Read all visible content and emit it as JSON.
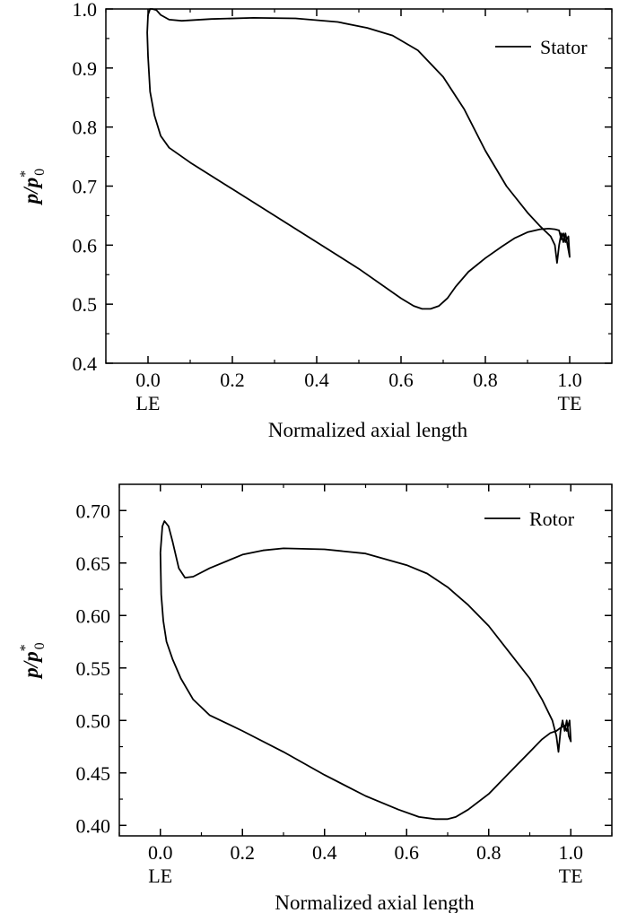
{
  "chart_data": [
    {
      "type": "line",
      "xlabel": "Normalized axial length",
      "ylabel": {
        "main": "p/p",
        "sup": "*",
        "sub": "0"
      },
      "xlim": [
        -0.1,
        1.1
      ],
      "ylim": [
        0.4,
        1.0
      ],
      "xticks": [
        0.0,
        0.2,
        0.4,
        0.6,
        0.8,
        1.0
      ],
      "xtick_labels": [
        "0.0",
        "0.2",
        "0.4",
        "0.6",
        "0.8",
        "1.0"
      ],
      "yticks": [
        0.4,
        0.5,
        0.6,
        0.7,
        0.8,
        0.9,
        1.0
      ],
      "ytick_labels": [
        "0.4",
        "0.5",
        "0.6",
        "0.7",
        "0.8",
        "0.9",
        "1.0"
      ],
      "annotations": [
        {
          "text": "LE",
          "x": 0.0
        },
        {
          "text": "TE",
          "x": 1.0
        }
      ],
      "legend": {
        "position": "top-right"
      },
      "series": [
        {
          "name": "Stator",
          "points": [
            [
              0.0,
              0.99
            ],
            [
              0.005,
              1.0
            ],
            [
              0.01,
              1.0
            ],
            [
              0.02,
              0.998
            ],
            [
              0.03,
              0.99
            ],
            [
              0.05,
              0.982
            ],
            [
              0.08,
              0.98
            ],
            [
              0.15,
              0.983
            ],
            [
              0.25,
              0.985
            ],
            [
              0.35,
              0.984
            ],
            [
              0.45,
              0.978
            ],
            [
              0.52,
              0.968
            ],
            [
              0.58,
              0.955
            ],
            [
              0.64,
              0.93
            ],
            [
              0.7,
              0.885
            ],
            [
              0.75,
              0.83
            ],
            [
              0.8,
              0.76
            ],
            [
              0.85,
              0.7
            ],
            [
              0.9,
              0.655
            ],
            [
              0.93,
              0.632
            ],
            [
              0.955,
              0.615
            ],
            [
              0.965,
              0.6
            ],
            [
              0.97,
              0.57
            ],
            [
              0.975,
              0.6
            ],
            [
              0.98,
              0.62
            ],
            [
              0.985,
              0.605
            ],
            [
              0.99,
              0.62
            ],
            [
              0.995,
              0.6
            ],
            [
              1.0,
              0.58
            ],
            [
              0.997,
              0.615
            ],
            [
              0.99,
              0.605
            ],
            [
              0.985,
              0.62
            ],
            [
              0.98,
              0.61
            ],
            [
              0.975,
              0.625
            ],
            [
              0.965,
              0.627
            ],
            [
              0.95,
              0.628
            ],
            [
              0.93,
              0.627
            ],
            [
              0.9,
              0.622
            ],
            [
              0.87,
              0.612
            ],
            [
              0.84,
              0.598
            ],
            [
              0.8,
              0.578
            ],
            [
              0.76,
              0.555
            ],
            [
              0.73,
              0.53
            ],
            [
              0.71,
              0.51
            ],
            [
              0.69,
              0.497
            ],
            [
              0.67,
              0.492
            ],
            [
              0.65,
              0.492
            ],
            [
              0.63,
              0.497
            ],
            [
              0.6,
              0.51
            ],
            [
              0.5,
              0.56
            ],
            [
              0.4,
              0.605
            ],
            [
              0.3,
              0.65
            ],
            [
              0.2,
              0.695
            ],
            [
              0.1,
              0.74
            ],
            [
              0.05,
              0.765
            ],
            [
              0.03,
              0.785
            ],
            [
              0.015,
              0.82
            ],
            [
              0.005,
              0.86
            ],
            [
              0.0,
              0.92
            ],
            [
              -0.002,
              0.96
            ],
            [
              0.0,
              0.99
            ]
          ]
        }
      ]
    },
    {
      "type": "line",
      "xlabel": "Normalized axial length",
      "ylabel": {
        "main": "p/p",
        "sup": "*",
        "sub": "0"
      },
      "xlim": [
        -0.1,
        1.1
      ],
      "ylim": [
        0.39,
        0.725
      ],
      "xticks": [
        0.0,
        0.2,
        0.4,
        0.6,
        0.8,
        1.0
      ],
      "xtick_labels": [
        "0.0",
        "0.2",
        "0.4",
        "0.6",
        "0.8",
        "1.0"
      ],
      "yticks": [
        0.4,
        0.45,
        0.5,
        0.55,
        0.6,
        0.65,
        0.7
      ],
      "ytick_labels": [
        "0.40",
        "0.45",
        "0.50",
        "0.55",
        "0.60",
        "0.65",
        "0.70"
      ],
      "annotations": [
        {
          "text": "LE",
          "x": 0.0
        },
        {
          "text": "TE",
          "x": 1.0
        }
      ],
      "legend": {
        "position": "top-right"
      },
      "series": [
        {
          "name": "Rotor",
          "points": [
            [
              0.0,
              0.66
            ],
            [
              0.005,
              0.685
            ],
            [
              0.01,
              0.69
            ],
            [
              0.02,
              0.685
            ],
            [
              0.03,
              0.67
            ],
            [
              0.045,
              0.645
            ],
            [
              0.06,
              0.636
            ],
            [
              0.08,
              0.637
            ],
            [
              0.12,
              0.645
            ],
            [
              0.2,
              0.658
            ],
            [
              0.25,
              0.662
            ],
            [
              0.3,
              0.664
            ],
            [
              0.4,
              0.663
            ],
            [
              0.5,
              0.659
            ],
            [
              0.6,
              0.648
            ],
            [
              0.65,
              0.64
            ],
            [
              0.7,
              0.627
            ],
            [
              0.75,
              0.61
            ],
            [
              0.8,
              0.59
            ],
            [
              0.85,
              0.565
            ],
            [
              0.9,
              0.54
            ],
            [
              0.93,
              0.52
            ],
            [
              0.955,
              0.5
            ],
            [
              0.965,
              0.485
            ],
            [
              0.97,
              0.47
            ],
            [
              0.975,
              0.49
            ],
            [
              0.98,
              0.5
            ],
            [
              0.985,
              0.49
            ],
            [
              0.99,
              0.5
            ],
            [
              0.995,
              0.485
            ],
            [
              1.0,
              0.48
            ],
            [
              0.997,
              0.5
            ],
            [
              0.99,
              0.49
            ],
            [
              0.985,
              0.495
            ],
            [
              0.975,
              0.493
            ],
            [
              0.965,
              0.49
            ],
            [
              0.95,
              0.488
            ],
            [
              0.93,
              0.482
            ],
            [
              0.9,
              0.47
            ],
            [
              0.85,
              0.45
            ],
            [
              0.8,
              0.43
            ],
            [
              0.75,
              0.415
            ],
            [
              0.72,
              0.408
            ],
            [
              0.7,
              0.406
            ],
            [
              0.67,
              0.406
            ],
            [
              0.63,
              0.408
            ],
            [
              0.58,
              0.415
            ],
            [
              0.5,
              0.428
            ],
            [
              0.4,
              0.448
            ],
            [
              0.3,
              0.47
            ],
            [
              0.2,
              0.49
            ],
            [
              0.12,
              0.505
            ],
            [
              0.08,
              0.52
            ],
            [
              0.05,
              0.54
            ],
            [
              0.03,
              0.558
            ],
            [
              0.015,
              0.575
            ],
            [
              0.007,
              0.595
            ],
            [
              0.002,
              0.62
            ],
            [
              0.0,
              0.66
            ]
          ]
        }
      ]
    }
  ]
}
